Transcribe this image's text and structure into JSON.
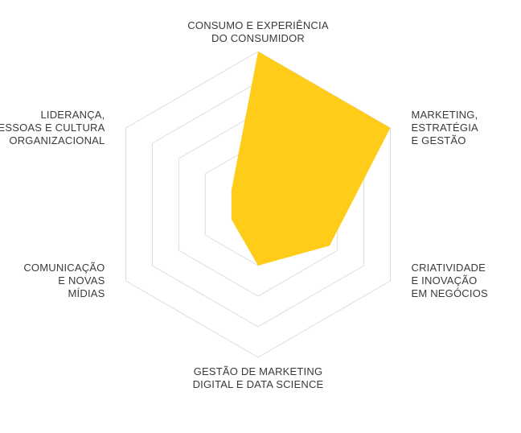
{
  "chart_data": {
    "type": "radar",
    "title": "",
    "axes": [
      {
        "label_lines": [
          "CONSUMO E EXPERIÊNCIA",
          "DO CONSUMIDOR"
        ],
        "value": 100
      },
      {
        "label_lines": [
          "MARKETING,",
          "ESTRATÉGIA",
          "E GESTÃO"
        ],
        "value": 100
      },
      {
        "label_lines": [
          "CRIATIVIDADE",
          "E INOVAÇÃO",
          "EM NEGÓCIOS"
        ],
        "value": 54
      },
      {
        "label_lines": [
          "GESTÃO DE MARKETING",
          "DIGITAL E DATA SCIENCE"
        ],
        "value": 40
      },
      {
        "label_lines": [
          "COMUNICAÇÃO",
          "E NOVAS",
          "MÍDIAS"
        ],
        "value": 20
      },
      {
        "label_lines": [
          "LIDERANÇA,",
          "PESSOAS E CULTURA",
          "ORGANIZACIONAL"
        ],
        "value": 20
      }
    ],
    "range": [
      0,
      100
    ],
    "rings": 5,
    "grid": true,
    "legend": "none",
    "fill_color": "#FFCC19",
    "grid_color": "#dddddd"
  }
}
